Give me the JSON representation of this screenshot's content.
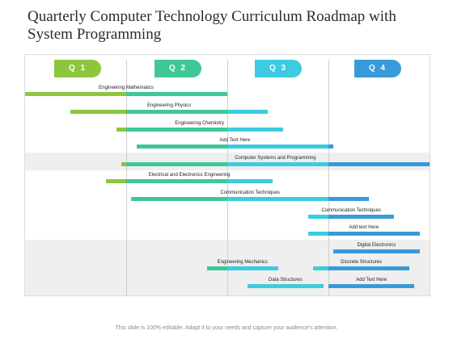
{
  "title": "Quarterly Computer Technology Curriculum Roadmap with System Programming",
  "quarters": [
    {
      "label": "Q 1",
      "color": "#8cc63f"
    },
    {
      "label": "Q 2",
      "color": "#3fc796"
    },
    {
      "label": "Q 3",
      "color": "#3ccbe0"
    },
    {
      "label": "Q 4",
      "color": "#3a9ad9"
    }
  ],
  "rows": [
    {
      "label": "Engineering Mathematics",
      "start": 0.0,
      "end": 2.0
    },
    {
      "label": "Engineering Physics",
      "start": 0.45,
      "end": 2.4
    },
    {
      "label": "Engineering Chemistry",
      "start": 0.9,
      "end": 2.55
    },
    {
      "label": "Add Text Here",
      "start": 1.1,
      "end": 3.05
    },
    {
      "label": "Computer Systems and Programming",
      "start": 0.95,
      "end": 4.0
    },
    {
      "label": "Electrical and Electronics Engineering",
      "start": 0.8,
      "end": 2.45
    },
    {
      "label": "Communication Techniques",
      "start": 1.05,
      "end": 3.4
    },
    {
      "label": "Communication Techniques",
      "start": 2.8,
      "end": 3.65
    },
    {
      "label": "Add text Here",
      "start": 2.8,
      "end": 3.9
    },
    {
      "label": "Digital Electronics",
      "start": 3.05,
      "end": 3.9
    },
    {
      "label": "Engineering Mechanics",
      "start": 1.8,
      "end": 2.5,
      "col": "left"
    },
    {
      "label": "Discrete Structures",
      "start": 2.85,
      "end": 3.8,
      "col": "right"
    },
    {
      "label": "Data Structures",
      "start": 2.2,
      "end": 2.95,
      "col": "left"
    },
    {
      "label": "Add Text Here",
      "start": 3.0,
      "end": 3.85,
      "col": "right"
    }
  ],
  "footer": "This slide is 100% editable. Adapt it to your needs and capture your audience's attention."
}
